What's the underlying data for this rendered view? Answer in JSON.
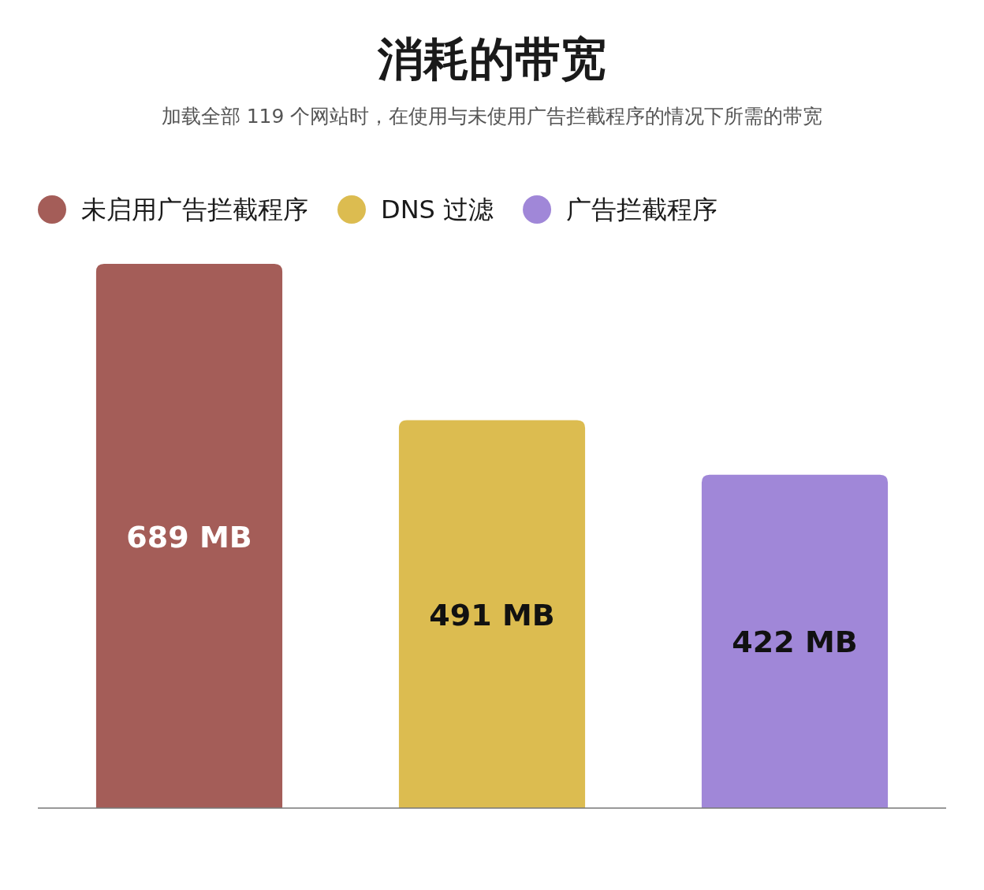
{
  "chart_data": {
    "type": "bar",
    "title": "消耗的带宽",
    "subtitle": "加载全部 119 个网站时，在使用与未使用广告拦截程序的情况下所需的带宽",
    "categories": [
      null,
      null,
      null
    ],
    "series": [
      {
        "name": "未启用广告拦截程序",
        "color": "#a45d58",
        "values": [
          689,
          null,
          null
        ],
        "value_labels": [
          "689 MB",
          null,
          null
        ]
      },
      {
        "name": "DNS 过滤",
        "color": "#dcbc50",
        "values": [
          null,
          491,
          null
        ],
        "value_labels": [
          null,
          "491 MB",
          null
        ]
      },
      {
        "name": "广告拦截程序",
        "color": "#a087d8",
        "values": [
          null,
          null,
          422
        ],
        "value_labels": [
          null,
          null,
          "422 MB"
        ]
      }
    ],
    "stacked": true,
    "legend": "top left"
  }
}
